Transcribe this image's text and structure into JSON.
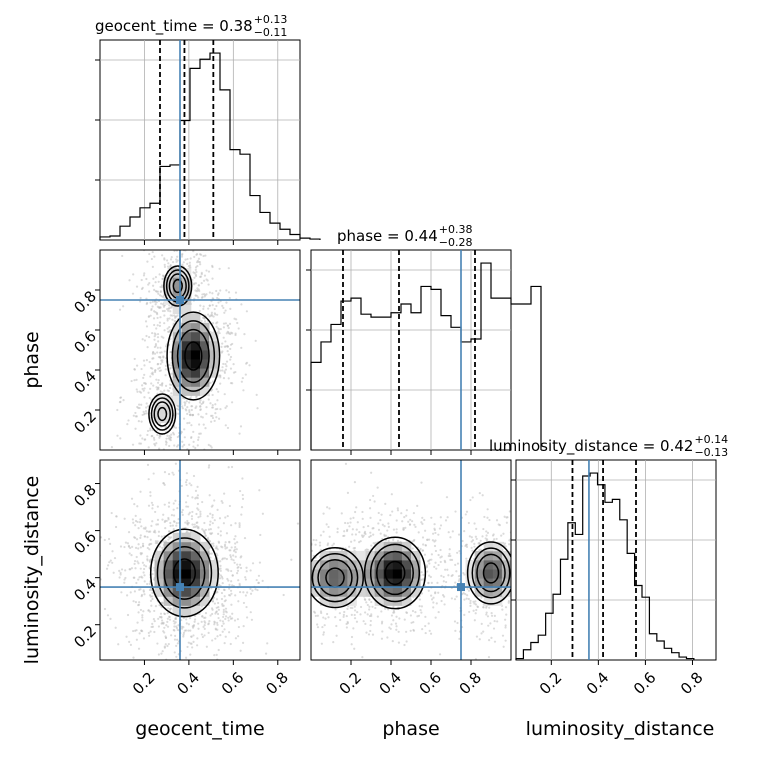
{
  "chart_data": {
    "type": "corner",
    "parameters": [
      "geocent_time",
      "phase",
      "luminosity_distance"
    ],
    "truths": {
      "geocent_time": 0.36,
      "phase": 0.75,
      "luminosity_distance": 0.36
    },
    "truth_color": "#4682b4",
    "grid": true,
    "titles": [
      {
        "param": "geocent_time",
        "text": "geocent_time = 0.38",
        "plus": "+0.13",
        "minus": "−0.11"
      },
      {
        "param": "phase",
        "text": "phase = 0.44",
        "plus": "+0.38",
        "minus": "−0.28"
      },
      {
        "param": "luminosity_distance",
        "text": "luminosity_distance = 0.42",
        "plus": "+0.14",
        "minus": "−0.13"
      }
    ],
    "axis_labels": {
      "x": [
        "geocent_time",
        "phase",
        "luminosity_distance"
      ],
      "y": [
        "phase",
        "luminosity_distance"
      ]
    },
    "tick_labels": [
      "0.2",
      "0.4",
      "0.6",
      "0.8"
    ],
    "ranges": {
      "geocent_time": [
        0.0,
        0.9
      ],
      "phase": [
        0.0,
        1.0
      ],
      "luminosity_distance": [
        0.05,
        0.9
      ]
    },
    "quantiles": {
      "geocent_time": [
        0.27,
        0.38,
        0.51
      ],
      "phase": [
        0.16,
        0.44,
        0.82
      ],
      "luminosity_distance": [
        0.29,
        0.42,
        0.56
      ]
    },
    "histograms": {
      "geocent_time": {
        "edges_start": 0.0,
        "bin_width": 0.045,
        "counts": [
          10,
          13,
          45,
          75,
          105,
          120,
          240,
          245,
          390,
          560,
          590,
          610,
          490,
          295,
          280,
          145,
          90,
          55,
          35,
          18,
          6,
          3
        ]
      },
      "phase": {
        "edges_start": 0.0,
        "bin_width": 0.05,
        "counts": [
          300,
          370,
          430,
          510,
          520,
          465,
          455,
          455,
          470,
          500,
          470,
          560,
          550,
          460,
          420,
          370,
          380,
          640,
          520,
          520,
          500,
          500,
          560
        ]
      },
      "luminosity_distance": {
        "edges_start": 0.05,
        "bin_width": 0.0315,
        "counts": [
          5,
          35,
          60,
          85,
          160,
          225,
          345,
          470,
          430,
          630,
          640,
          600,
          540,
          550,
          480,
          365,
          255,
          215,
          90,
          65,
          40,
          25,
          10,
          5
        ]
      }
    },
    "densities_2d": [
      {
        "x": "geocent_time",
        "y": "phase",
        "blobs": [
          {
            "cx": 0.42,
            "cy": 0.47,
            "sx": 0.07,
            "sy": 0.13,
            "w": 1.0
          },
          {
            "cx": 0.35,
            "cy": 0.82,
            "sx": 0.05,
            "sy": 0.08,
            "w": 0.55
          },
          {
            "cx": 0.28,
            "cy": 0.18,
            "sx": 0.06,
            "sy": 0.1,
            "w": 0.35
          }
        ]
      },
      {
        "x": "geocent_time",
        "y": "luminosity_distance",
        "blobs": [
          {
            "cx": 0.38,
            "cy": 0.42,
            "sx": 0.09,
            "sy": 0.11,
            "w": 1.0
          }
        ]
      },
      {
        "x": "phase",
        "y": "luminosity_distance",
        "blobs": [
          {
            "cx": 0.42,
            "cy": 0.42,
            "sx": 0.09,
            "sy": 0.09,
            "w": 1.0
          },
          {
            "cx": 0.12,
            "cy": 0.4,
            "sx": 0.1,
            "sy": 0.09,
            "w": 0.7
          },
          {
            "cx": 0.9,
            "cy": 0.42,
            "sx": 0.08,
            "sy": 0.09,
            "w": 0.75
          }
        ]
      }
    ]
  }
}
